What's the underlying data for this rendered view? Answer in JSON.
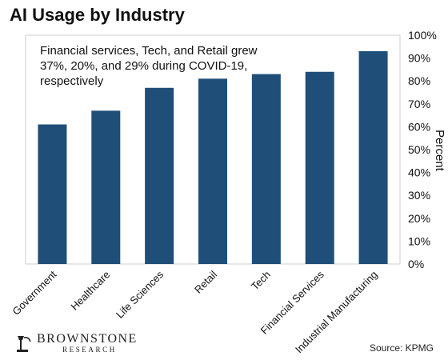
{
  "chart_data": {
    "type": "bar",
    "title": "AI Usage by Industry",
    "categories": [
      "Government",
      "Healthcare",
      "Life Sciences",
      "Retail",
      "Tech",
      "Financial Services",
      "Industrial Manufacturing"
    ],
    "values": [
      61,
      67,
      77,
      81,
      83,
      84,
      93
    ],
    "ylabel": "Percent",
    "xlabel": "",
    "ylim": [
      0,
      100
    ],
    "yticks": [
      "0%",
      "10%",
      "20%",
      "30%",
      "40%",
      "50%",
      "60%",
      "70%",
      "80%",
      "90%",
      "100%"
    ],
    "y_axis_side": "right",
    "grid": false,
    "bar_color": "#1f4e79",
    "annotation": [
      "Financial services, Tech, and Retail grew",
      "37%, 20%, and 29% during COVID-19,",
      "respectively"
    ]
  },
  "branding": {
    "logo_line1": "BROWNSTONE",
    "logo_line2": "RESEARCH",
    "source": "Source: KPMG"
  }
}
